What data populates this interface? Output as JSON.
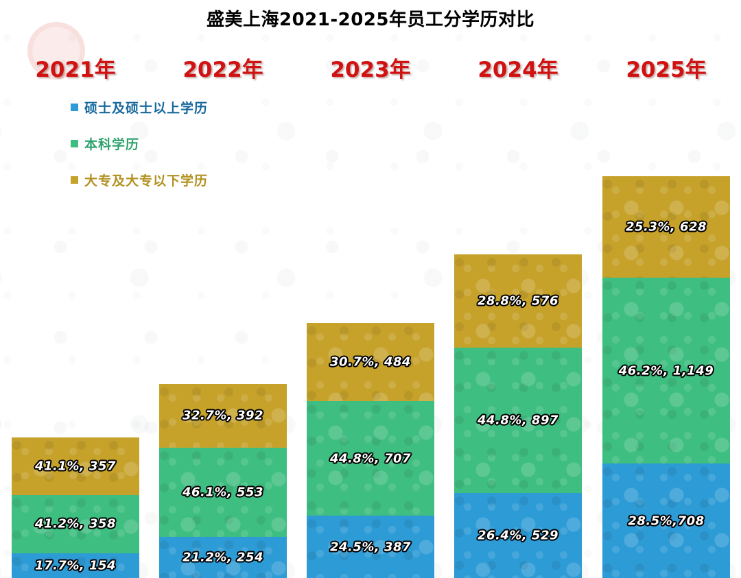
{
  "title": "盛美上海2021-2025年员工分学历对比",
  "year_label_color": "#d01212",
  "legend": [
    {
      "label": "硕士及硕士以上学历",
      "color": "#2d9bd5",
      "text_color": "#16689d"
    },
    {
      "label": "本科学历",
      "color": "#3fbe81",
      "text_color": "#2da26b"
    },
    {
      "label": "大专及大专以下学历",
      "color": "#c6a22b",
      "text_color": "#b29120"
    }
  ],
  "chart_data": {
    "type": "bar",
    "stacked": true,
    "title": "盛美上海2021-2025年员工分学历对比",
    "categories": [
      "2021年",
      "2022年",
      "2023年",
      "2024年",
      "2025年"
    ],
    "series": [
      {
        "key": "master",
        "name": "硕士及硕士以上学历",
        "color": "#2d9bd5",
        "values": [
          154,
          254,
          387,
          529,
          708
        ],
        "percents": [
          17.7,
          21.2,
          24.5,
          26.4,
          28.5
        ],
        "labels": [
          "17.7%, 154",
          "21.2%, 254",
          "24.5%, 387",
          "26.4%, 529",
          "28.5%,708"
        ]
      },
      {
        "key": "bachelor",
        "name": "本科学历",
        "color": "#3fbe81",
        "values": [
          358,
          553,
          707,
          897,
          1149
        ],
        "percents": [
          41.2,
          46.1,
          44.8,
          44.8,
          46.2
        ],
        "labels": [
          "41.2%, 358",
          "46.1%, 553",
          "44.8%, 707",
          "44.8%, 897",
          "46.2%, 1,149"
        ]
      },
      {
        "key": "associate",
        "name": "大专及大专以下学历",
        "color": "#c6a22b",
        "values": [
          357,
          392,
          484,
          576,
          628
        ],
        "percents": [
          41.1,
          32.7,
          30.7,
          28.8,
          25.3
        ],
        "labels": [
          "41.1%, 357",
          "32.7%, 392",
          "30.7%, 484",
          "28.8%, 576",
          "25.3%, 628"
        ]
      }
    ],
    "legend_position": "top-left",
    "grid": false
  }
}
